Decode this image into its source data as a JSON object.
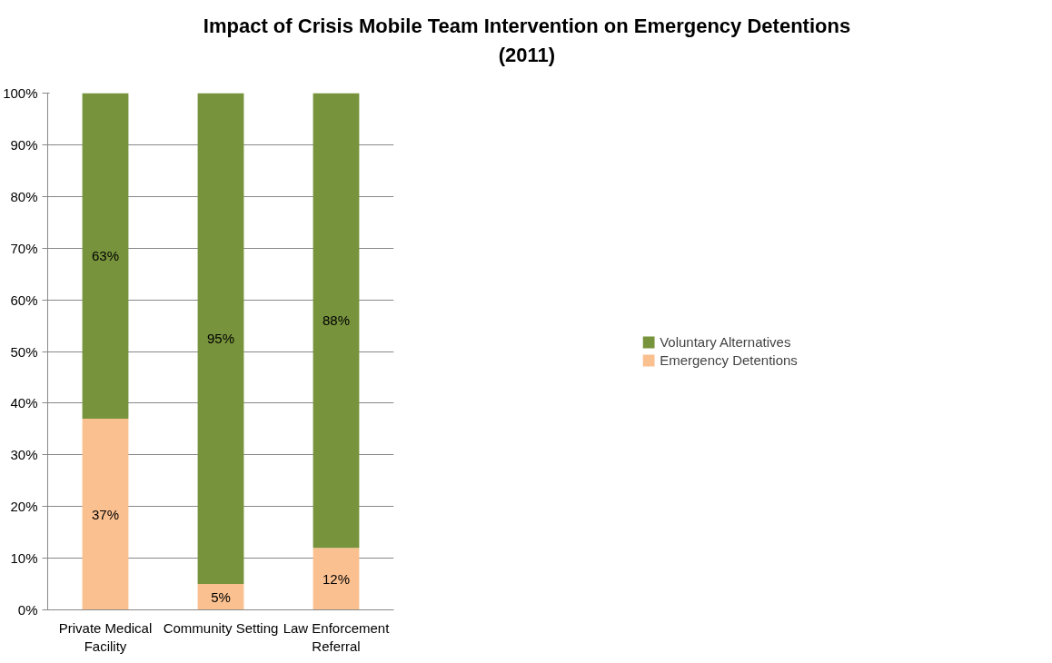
{
  "chart_data": {
    "type": "bar",
    "stacked": true,
    "title": "Impact of Crisis Mobile Team Intervention on Emergency Detentions\n(2011)",
    "categories": [
      "Private Medical Facility",
      "Community Setting",
      "Law Enforcement Referral"
    ],
    "series": [
      {
        "name": "Emergency Detentions",
        "color": "#fac090",
        "values": [
          37,
          5,
          12
        ],
        "value_labels": [
          "37%",
          "5%",
          "12%"
        ]
      },
      {
        "name": "Voluntary Alternatives",
        "color": "#77933c",
        "values": [
          63,
          95,
          88
        ],
        "value_labels": [
          "63%",
          "95%",
          "88%"
        ]
      }
    ],
    "ylim": [
      0,
      100
    ],
    "yticks": [
      {
        "value": 0,
        "label": "0%"
      },
      {
        "value": 10,
        "label": "10%"
      },
      {
        "value": 20,
        "label": "20%"
      },
      {
        "value": 30,
        "label": "30%"
      },
      {
        "value": 40,
        "label": "40%"
      },
      {
        "value": 50,
        "label": "50%"
      },
      {
        "value": 60,
        "label": "60%"
      },
      {
        "value": 70,
        "label": "70%"
      },
      {
        "value": 80,
        "label": "80%"
      },
      {
        "value": 90,
        "label": "90%"
      },
      {
        "value": 100,
        "label": "100%"
      }
    ],
    "grid": "y",
    "legend": "right"
  }
}
